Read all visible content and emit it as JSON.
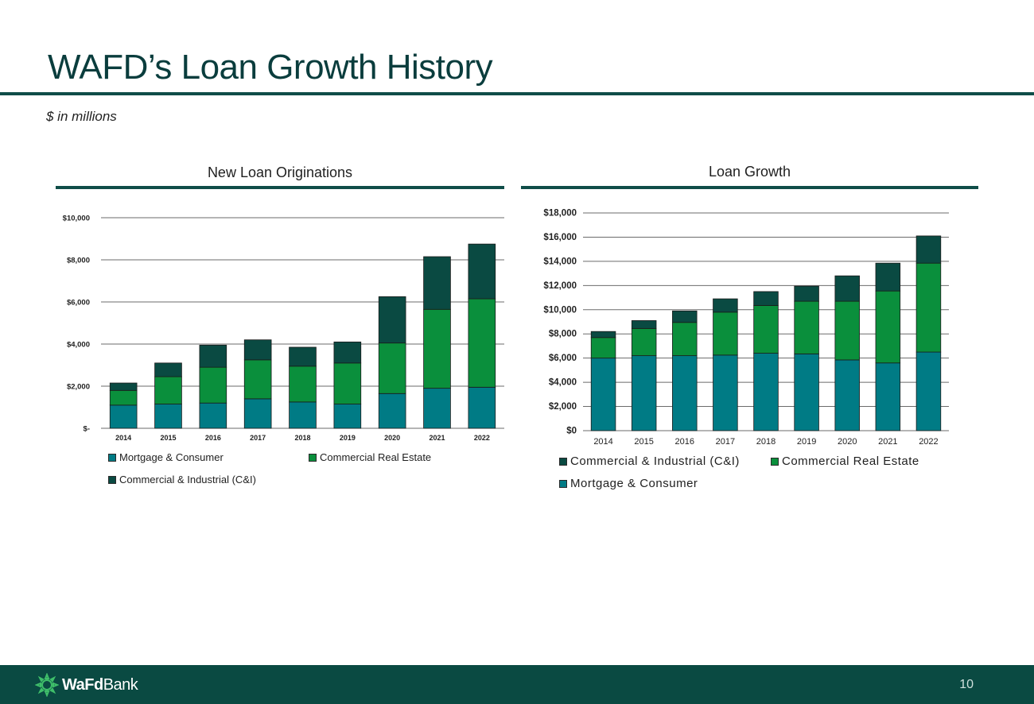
{
  "slide": {
    "title": "WAFD’s Loan Growth History",
    "subtitle": "$ in millions",
    "page_number": "10"
  },
  "colors": {
    "mortgage": "#007b85",
    "cre": "#0a8f3c",
    "cni": "#0a4a42",
    "rule": "#0f4d48",
    "footer": "#0a4a42"
  },
  "footer": {
    "brand_bold": "WaFd",
    "brand_regular": "Bank",
    "logo_icon": "wafd-sun-logo-icon"
  },
  "chart_data": [
    {
      "type": "bar",
      "stacked": true,
      "title": "New Loan Originations",
      "categories": [
        "2014",
        "2015",
        "2016",
        "2017",
        "2018",
        "2019",
        "2020",
        "2021",
        "2022"
      ],
      "series": [
        {
          "name": "Mortgage & Consumer",
          "color_key": "mortgage",
          "values": [
            1100,
            1150,
            1200,
            1400,
            1250,
            1150,
            1650,
            1900,
            1950
          ]
        },
        {
          "name": "Commercial Real Estate",
          "color_key": "cre",
          "values": [
            700,
            1300,
            1700,
            1850,
            1700,
            1950,
            2400,
            3750,
            4200
          ]
        },
        {
          "name": "Commercial & Industrial (C&I)",
          "color_key": "cni",
          "values": [
            350,
            650,
            1050,
            950,
            900,
            1000,
            2200,
            2500,
            2600
          ]
        }
      ],
      "ylim": [
        0,
        10000
      ],
      "yticks": [
        0,
        2000,
        4000,
        6000,
        8000,
        10000
      ],
      "ytick_labels": [
        "$-",
        "$2,000",
        "$4,000",
        "$6,000",
        "$8,000",
        "$10,000"
      ],
      "grid": true,
      "legend_position": "bottom",
      "legend_order": [
        "Mortgage & Consumer",
        "Commercial Real Estate",
        "Commercial & Industrial (C&I)"
      ]
    },
    {
      "type": "bar",
      "stacked": true,
      "title": "Loan Growth",
      "categories": [
        "2014",
        "2015",
        "2016",
        "2017",
        "2018",
        "2019",
        "2020",
        "2021",
        "2022"
      ],
      "series": [
        {
          "name": "Mortgage & Consumer",
          "color_key": "mortgage",
          "values": [
            6000,
            6200,
            6200,
            6250,
            6400,
            6350,
            5850,
            5600,
            6500
          ]
        },
        {
          "name": "Commercial Real Estate",
          "color_key": "cre",
          "values": [
            1700,
            2250,
            2750,
            3550,
            3950,
            4350,
            4850,
            5950,
            7350
          ]
        },
        {
          "name": "Commercial & Industrial (C&I)",
          "color_key": "cni",
          "values": [
            500,
            650,
            950,
            1100,
            1150,
            1250,
            2100,
            2300,
            2250
          ]
        }
      ],
      "ylim": [
        0,
        18000
      ],
      "yticks": [
        0,
        2000,
        4000,
        6000,
        8000,
        10000,
        12000,
        14000,
        16000,
        18000
      ],
      "ytick_labels": [
        "$0",
        "$2,000",
        "$4,000",
        "$6,000",
        "$8,000",
        "$10,000",
        "$12,000",
        "$14,000",
        "$16,000",
        "$18,000"
      ],
      "grid": true,
      "legend_position": "bottom",
      "legend_order": [
        "Commercial & Industrial (C&I)",
        "Commercial Real Estate",
        "Mortgage & Consumer"
      ]
    }
  ]
}
